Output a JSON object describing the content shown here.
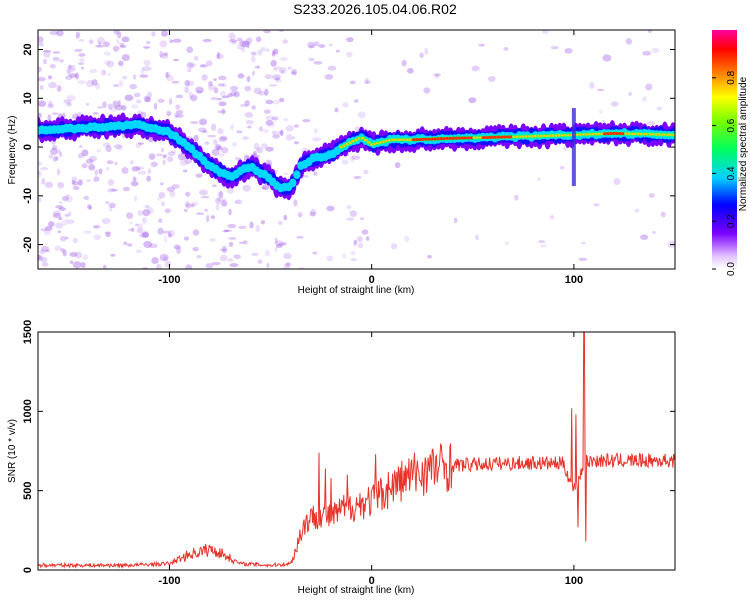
{
  "title": "S233.2026.105.04.06.R02",
  "chart_data": [
    {
      "type": "heatmap",
      "name": "spectrogram",
      "xlabel": "Height of straight line (km)",
      "ylabel": "Frequency (Hz)",
      "xlim": [
        -165,
        150
      ],
      "ylim": [
        -25,
        24
      ],
      "x_ticks": [
        -100,
        0,
        100
      ],
      "x_tick_labels": [
        "-100",
        "0",
        "100"
      ],
      "y_ticks": [
        20,
        10,
        0,
        -10,
        -20
      ],
      "y_tick_labels": [
        "20",
        "10",
        "0",
        "-10",
        "-20"
      ],
      "ridge": {
        "x": [
          -165,
          -140,
          -115,
          -100,
          -90,
          -80,
          -70,
          -60,
          -50,
          -45,
          -40,
          -35,
          -30,
          -25,
          -20,
          -15,
          -10,
          -5,
          0,
          10,
          20,
          40,
          60,
          80,
          100,
          120,
          150
        ],
        "y": [
          3.5,
          4,
          4.5,
          3,
          0,
          -4,
          -6,
          -4,
          -6.5,
          -8.5,
          -8,
          -4,
          -2.5,
          -2,
          -1.5,
          0,
          1,
          2,
          0.5,
          1.5,
          1.5,
          1.8,
          2,
          2.2,
          2.5,
          2.8,
          2.5
        ]
      },
      "colorbar": {
        "label": "Normalized spectral amplitude",
        "ticks": [
          0.0,
          0.2,
          0.4,
          0.6,
          0.8
        ],
        "tick_labels": [
          "0.0",
          "0.2",
          "0.4",
          "0.6",
          "0.8"
        ],
        "range": [
          0,
          1
        ]
      }
    },
    {
      "type": "line",
      "name": "snr",
      "xlabel": "Height of straight line (km)",
      "ylabel": "SNR (10 * v/v)",
      "xlim": [
        -165,
        150
      ],
      "ylim": [
        0,
        1500
      ],
      "x_ticks": [
        -100,
        0,
        100
      ],
      "x_tick_labels": [
        "-100",
        "0",
        "100"
      ],
      "y_ticks": [
        0,
        500,
        1000,
        1500
      ],
      "y_tick_labels": [
        "0",
        "500",
        "1000",
        "1500"
      ],
      "color": "#e8332b",
      "envelope": {
        "x": [
          -165,
          -120,
          -100,
          -90,
          -80,
          -75,
          -65,
          -50,
          -40,
          -37,
          -34,
          -30,
          -25,
          -20,
          -15,
          -10,
          -5,
          0,
          5,
          10,
          20,
          30,
          40,
          60,
          80,
          95,
          100,
          103,
          106,
          110,
          130,
          150
        ],
        "y": [
          30,
          30,
          40,
          100,
          130,
          110,
          40,
          30,
          40,
          150,
          280,
          330,
          350,
          330,
          380,
          400,
          420,
          440,
          480,
          530,
          600,
          640,
          660,
          670,
          675,
          670,
          500,
          600,
          680,
          690,
          690,
          690
        ]
      },
      "spikes": [
        {
          "x": -26,
          "y": 740
        },
        {
          "x": -23,
          "y": 640
        },
        {
          "x": -20,
          "y": 580
        },
        {
          "x": -12,
          "y": 600
        },
        {
          "x": 2,
          "y": 730
        },
        {
          "x": 4,
          "y": 500
        },
        {
          "x": 99,
          "y": 1020
        },
        {
          "x": 101,
          "y": 980
        },
        {
          "x": 102,
          "y": 270
        },
        {
          "x": 105,
          "y": 1500
        },
        {
          "x": 106,
          "y": 180
        }
      ]
    }
  ]
}
